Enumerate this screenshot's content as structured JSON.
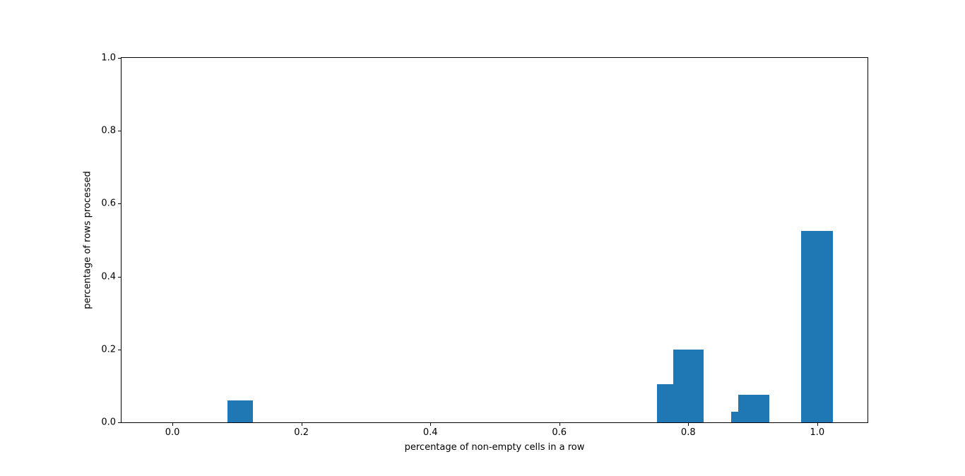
{
  "chart_data": {
    "type": "bar",
    "title": "",
    "xlabel": "percentage of non-empty cells in a row",
    "ylabel": "percentage of rows processed",
    "xlim": [
      -0.079,
      1.078
    ],
    "ylim": [
      0.0,
      1.0
    ],
    "xticks": [
      0.0,
      0.2,
      0.4,
      0.6,
      0.8,
      1.0
    ],
    "yticks": [
      0.0,
      0.2,
      0.4,
      0.6,
      0.8,
      1.0
    ],
    "grid": false,
    "legend": "none",
    "bar_color": "#1f77b4",
    "bars": [
      {
        "x_left": 0.085,
        "x_right": 0.125,
        "height": 0.06
      },
      {
        "x_left": 0.752,
        "x_right": 0.777,
        "height": 0.105
      },
      {
        "x_left": 0.777,
        "x_right": 0.824,
        "height": 0.2
      },
      {
        "x_left": 0.866,
        "x_right": 0.878,
        "height": 0.03
      },
      {
        "x_left": 0.878,
        "x_right": 0.926,
        "height": 0.075
      },
      {
        "x_left": 0.975,
        "x_right": 1.024,
        "height": 0.525
      }
    ]
  }
}
